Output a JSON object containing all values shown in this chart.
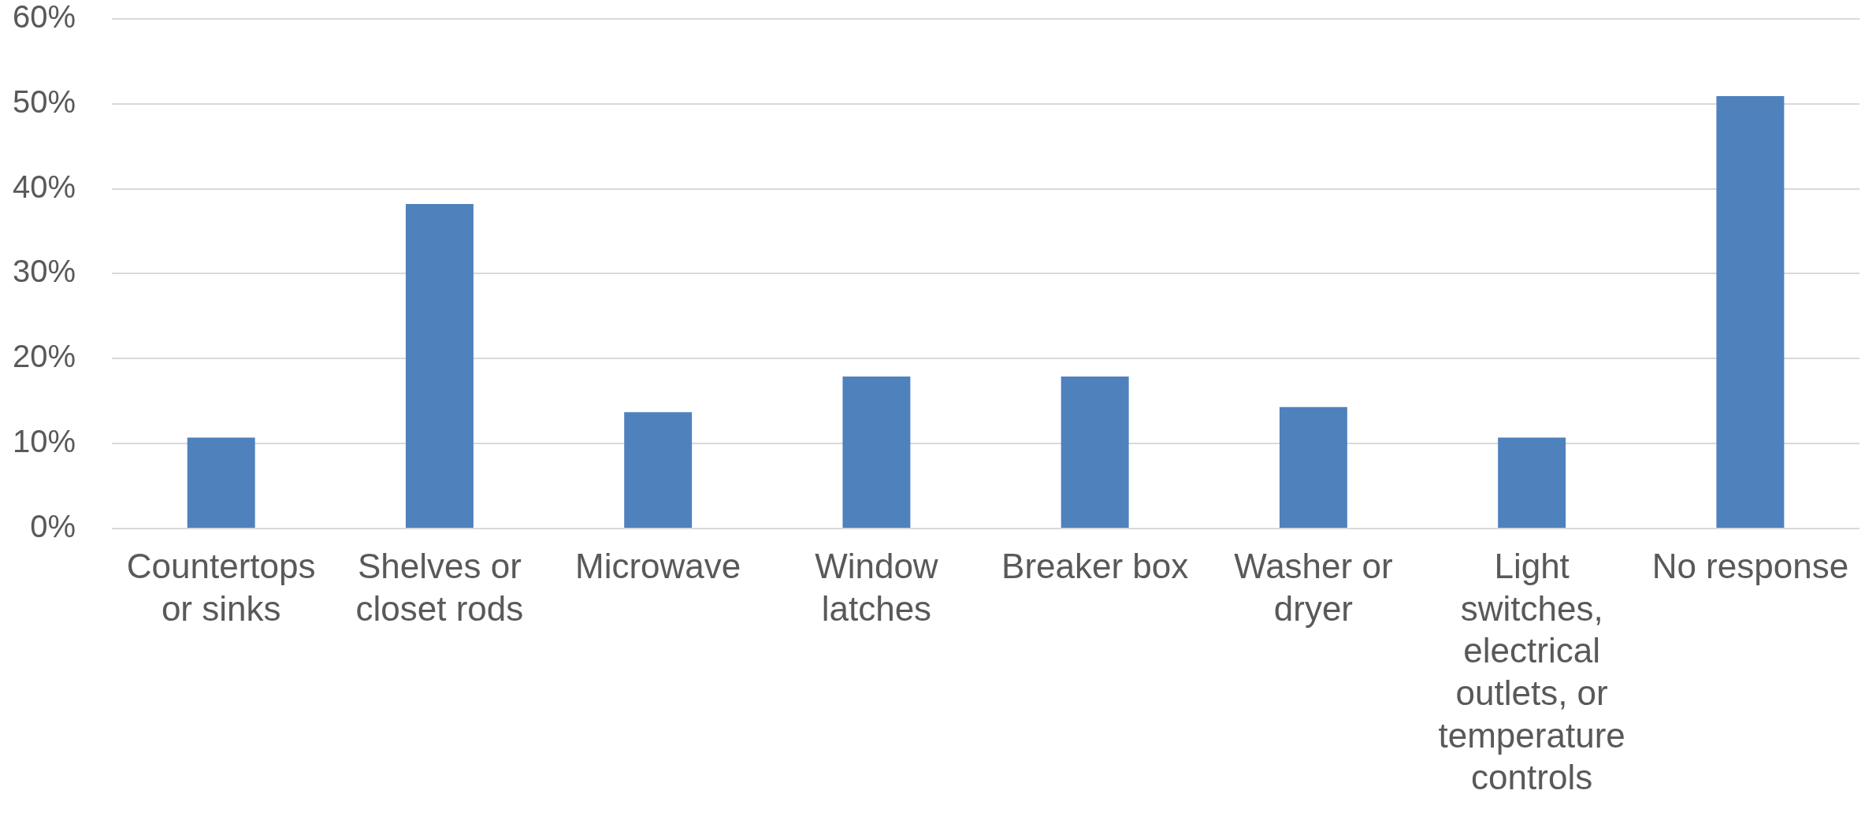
{
  "chart_data": {
    "type": "bar",
    "categories": [
      "Countertops or sinks",
      "Shelves or closet rods",
      "Microwave",
      "Window latches",
      "Breaker box",
      "Washer or dryer",
      "Light switches, electrical outlets, or temperature controls",
      "No response"
    ],
    "values": [
      10.7,
      38.2,
      13.7,
      17.9,
      17.9,
      14.3,
      10.7,
      50.9
    ],
    "color": "#4f81bd",
    "ylim": [
      0,
      60
    ],
    "yticks": [
      {
        "value": 0,
        "label": "0%"
      },
      {
        "value": 10,
        "label": "10%"
      },
      {
        "value": 20,
        "label": "20%"
      },
      {
        "value": 30,
        "label": "30%"
      },
      {
        "value": 40,
        "label": "40%"
      },
      {
        "value": 50,
        "label": "50%"
      },
      {
        "value": 60,
        "label": "60%"
      }
    ],
    "grid": "y"
  }
}
